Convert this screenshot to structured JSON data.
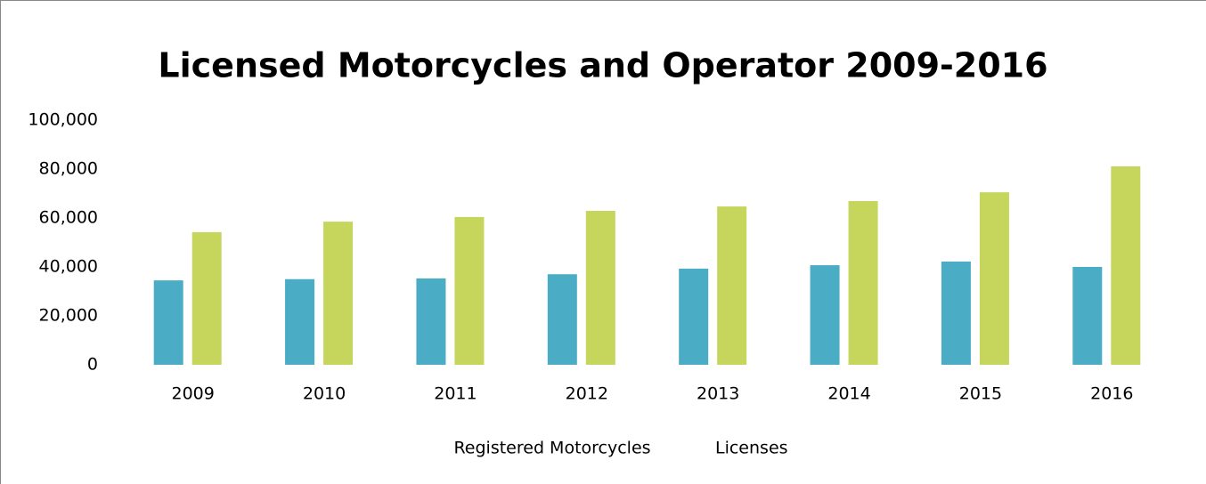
{
  "chart_data": {
    "type": "bar",
    "title": "Licensed Motorcycles and Operator 2009-2016",
    "categories": [
      "2009",
      "2010",
      "2011",
      "2012",
      "2013",
      "2014",
      "2015",
      "2016"
    ],
    "series": [
      {
        "name": "Registered Motorcycles",
        "color": "#4bacc6",
        "values": [
          34500,
          35000,
          35300,
          37000,
          39300,
          40700,
          42200,
          40000
        ]
      },
      {
        "name": "Licenses",
        "color": "#c6d65c",
        "values": [
          54200,
          58500,
          60400,
          62900,
          64700,
          66900,
          70500,
          81100
        ]
      }
    ],
    "ylim": [
      0,
      100000
    ],
    "yticks": [
      0,
      {
        "value": 20000,
        "label": "20,000"
      },
      {
        "value": 40000,
        "label": "40,000"
      },
      {
        "value": 60000,
        "label": "60,000"
      },
      {
        "value": 80000,
        "label": "80,000"
      },
      {
        "value": 100000,
        "label": "100,000"
      }
    ],
    "grid": false,
    "legend": "bottom"
  }
}
